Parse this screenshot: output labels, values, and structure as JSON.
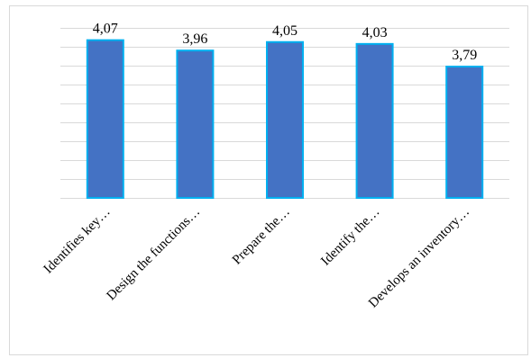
{
  "chart_data": {
    "type": "bar",
    "categories": [
      "Identifies key…",
      "Design the functions…",
      "Prepare the…",
      "Identify the…",
      "Develops an inventory…"
    ],
    "values": [
      4.07,
      3.96,
      4.05,
      4.03,
      3.79
    ],
    "value_labels": [
      "4,07",
      "3,96",
      "4,05",
      "4,03",
      "3,79"
    ],
    "ylim": [
      2.4,
      4.2
    ],
    "grid": true,
    "legend": "none",
    "bar_color": "#4472C4",
    "bar_edge_color": "#00B0F0",
    "grid_color": "#d9d9d9"
  }
}
